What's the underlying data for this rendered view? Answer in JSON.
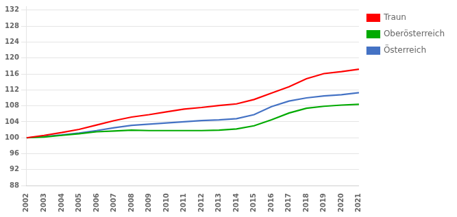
{
  "chart_data": {
    "type": "line",
    "categories": [
      "2002",
      "2003",
      "2004",
      "2005",
      "2006",
      "2007",
      "2008",
      "2009",
      "2010",
      "2011",
      "2012",
      "2013",
      "2014",
      "2015",
      "2016",
      "2017",
      "2018",
      "2019",
      "2020",
      "2021"
    ],
    "series": [
      {
        "name": "Traun",
        "color": "#ff0000",
        "values": [
          100.0,
          100.6,
          101.3,
          102.1,
          103.2,
          104.3,
          105.2,
          105.8,
          106.5,
          107.2,
          107.6,
          108.1,
          108.5,
          109.6,
          111.2,
          112.8,
          114.8,
          116.1,
          116.6,
          117.2
        ]
      },
      {
        "name": "Oberösterreich",
        "color": "#00aa00",
        "values": [
          100.0,
          100.2,
          100.6,
          101.0,
          101.5,
          101.7,
          101.9,
          101.8,
          101.8,
          101.8,
          101.8,
          101.9,
          102.2,
          103.0,
          104.5,
          106.2,
          107.4,
          107.9,
          108.2,
          108.4
        ]
      },
      {
        "name": "Österreich",
        "color": "#4472c4",
        "values": [
          100.0,
          100.3,
          100.7,
          101.2,
          101.8,
          102.5,
          103.1,
          103.4,
          103.7,
          104.0,
          104.3,
          104.5,
          104.8,
          105.8,
          107.8,
          109.2,
          110.0,
          110.5,
          110.8,
          111.3
        ]
      }
    ],
    "ylim": [
      88,
      133
    ],
    "yticks": [
      88,
      92,
      96,
      100,
      104,
      108,
      112,
      116,
      120,
      124,
      128,
      132
    ],
    "grid": true,
    "legend": "right"
  }
}
